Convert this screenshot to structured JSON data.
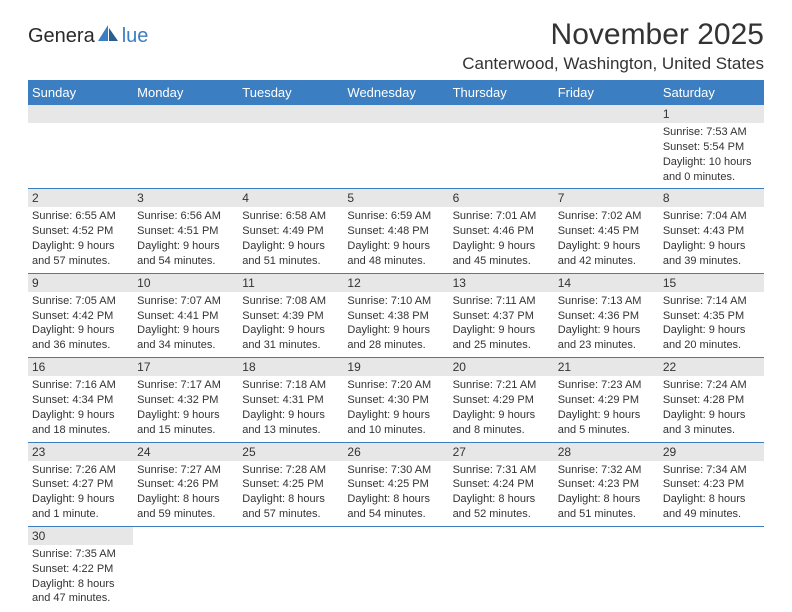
{
  "logo": {
    "text1": "Genera",
    "text2": "lue",
    "brand_accent": "#3b7ec1"
  },
  "header": {
    "title": "November 2025",
    "subtitle": "Canterwood, Washington, United States"
  },
  "calendar": {
    "header_bg": "#3b7ec1",
    "header_text_color": "#ffffff",
    "daynum_bg": "#e7e7e7",
    "divider_color": "#3b7ec1",
    "text_color": "#333333",
    "font_size_body": 11,
    "font_size_header": 13,
    "day_names": [
      "Sunday",
      "Monday",
      "Tuesday",
      "Wednesday",
      "Thursday",
      "Friday",
      "Saturday"
    ],
    "weeks": [
      [
        null,
        null,
        null,
        null,
        null,
        null,
        {
          "n": "1",
          "sr": "Sunrise: 7:53 AM",
          "ss": "Sunset: 5:54 PM",
          "dl": "Daylight: 10 hours and 0 minutes."
        }
      ],
      [
        {
          "n": "2",
          "sr": "Sunrise: 6:55 AM",
          "ss": "Sunset: 4:52 PM",
          "dl": "Daylight: 9 hours and 57 minutes."
        },
        {
          "n": "3",
          "sr": "Sunrise: 6:56 AM",
          "ss": "Sunset: 4:51 PM",
          "dl": "Daylight: 9 hours and 54 minutes."
        },
        {
          "n": "4",
          "sr": "Sunrise: 6:58 AM",
          "ss": "Sunset: 4:49 PM",
          "dl": "Daylight: 9 hours and 51 minutes."
        },
        {
          "n": "5",
          "sr": "Sunrise: 6:59 AM",
          "ss": "Sunset: 4:48 PM",
          "dl": "Daylight: 9 hours and 48 minutes."
        },
        {
          "n": "6",
          "sr": "Sunrise: 7:01 AM",
          "ss": "Sunset: 4:46 PM",
          "dl": "Daylight: 9 hours and 45 minutes."
        },
        {
          "n": "7",
          "sr": "Sunrise: 7:02 AM",
          "ss": "Sunset: 4:45 PM",
          "dl": "Daylight: 9 hours and 42 minutes."
        },
        {
          "n": "8",
          "sr": "Sunrise: 7:04 AM",
          "ss": "Sunset: 4:43 PM",
          "dl": "Daylight: 9 hours and 39 minutes."
        }
      ],
      [
        {
          "n": "9",
          "sr": "Sunrise: 7:05 AM",
          "ss": "Sunset: 4:42 PM",
          "dl": "Daylight: 9 hours and 36 minutes."
        },
        {
          "n": "10",
          "sr": "Sunrise: 7:07 AM",
          "ss": "Sunset: 4:41 PM",
          "dl": "Daylight: 9 hours and 34 minutes."
        },
        {
          "n": "11",
          "sr": "Sunrise: 7:08 AM",
          "ss": "Sunset: 4:39 PM",
          "dl": "Daylight: 9 hours and 31 minutes."
        },
        {
          "n": "12",
          "sr": "Sunrise: 7:10 AM",
          "ss": "Sunset: 4:38 PM",
          "dl": "Daylight: 9 hours and 28 minutes."
        },
        {
          "n": "13",
          "sr": "Sunrise: 7:11 AM",
          "ss": "Sunset: 4:37 PM",
          "dl": "Daylight: 9 hours and 25 minutes."
        },
        {
          "n": "14",
          "sr": "Sunrise: 7:13 AM",
          "ss": "Sunset: 4:36 PM",
          "dl": "Daylight: 9 hours and 23 minutes."
        },
        {
          "n": "15",
          "sr": "Sunrise: 7:14 AM",
          "ss": "Sunset: 4:35 PM",
          "dl": "Daylight: 9 hours and 20 minutes."
        }
      ],
      [
        {
          "n": "16",
          "sr": "Sunrise: 7:16 AM",
          "ss": "Sunset: 4:34 PM",
          "dl": "Daylight: 9 hours and 18 minutes."
        },
        {
          "n": "17",
          "sr": "Sunrise: 7:17 AM",
          "ss": "Sunset: 4:32 PM",
          "dl": "Daylight: 9 hours and 15 minutes."
        },
        {
          "n": "18",
          "sr": "Sunrise: 7:18 AM",
          "ss": "Sunset: 4:31 PM",
          "dl": "Daylight: 9 hours and 13 minutes."
        },
        {
          "n": "19",
          "sr": "Sunrise: 7:20 AM",
          "ss": "Sunset: 4:30 PM",
          "dl": "Daylight: 9 hours and 10 minutes."
        },
        {
          "n": "20",
          "sr": "Sunrise: 7:21 AM",
          "ss": "Sunset: 4:29 PM",
          "dl": "Daylight: 9 hours and 8 minutes."
        },
        {
          "n": "21",
          "sr": "Sunrise: 7:23 AM",
          "ss": "Sunset: 4:29 PM",
          "dl": "Daylight: 9 hours and 5 minutes."
        },
        {
          "n": "22",
          "sr": "Sunrise: 7:24 AM",
          "ss": "Sunset: 4:28 PM",
          "dl": "Daylight: 9 hours and 3 minutes."
        }
      ],
      [
        {
          "n": "23",
          "sr": "Sunrise: 7:26 AM",
          "ss": "Sunset: 4:27 PM",
          "dl": "Daylight: 9 hours and 1 minute."
        },
        {
          "n": "24",
          "sr": "Sunrise: 7:27 AM",
          "ss": "Sunset: 4:26 PM",
          "dl": "Daylight: 8 hours and 59 minutes."
        },
        {
          "n": "25",
          "sr": "Sunrise: 7:28 AM",
          "ss": "Sunset: 4:25 PM",
          "dl": "Daylight: 8 hours and 57 minutes."
        },
        {
          "n": "26",
          "sr": "Sunrise: 7:30 AM",
          "ss": "Sunset: 4:25 PM",
          "dl": "Daylight: 8 hours and 54 minutes."
        },
        {
          "n": "27",
          "sr": "Sunrise: 7:31 AM",
          "ss": "Sunset: 4:24 PM",
          "dl": "Daylight: 8 hours and 52 minutes."
        },
        {
          "n": "28",
          "sr": "Sunrise: 7:32 AM",
          "ss": "Sunset: 4:23 PM",
          "dl": "Daylight: 8 hours and 51 minutes."
        },
        {
          "n": "29",
          "sr": "Sunrise: 7:34 AM",
          "ss": "Sunset: 4:23 PM",
          "dl": "Daylight: 8 hours and 49 minutes."
        }
      ],
      [
        {
          "n": "30",
          "sr": "Sunrise: 7:35 AM",
          "ss": "Sunset: 4:22 PM",
          "dl": "Daylight: 8 hours and 47 minutes."
        },
        null,
        null,
        null,
        null,
        null,
        null
      ]
    ]
  }
}
